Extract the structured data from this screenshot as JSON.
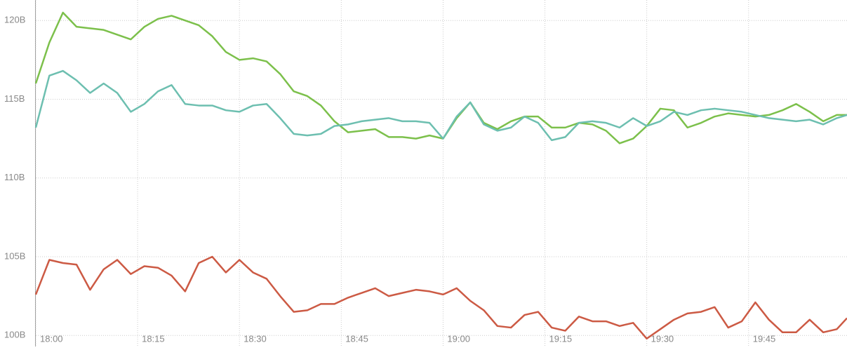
{
  "chart_data": {
    "type": "line",
    "x": [
      0,
      2,
      4,
      6,
      8,
      10,
      12,
      14,
      16,
      18,
      20,
      22,
      24,
      26,
      28,
      30,
      32,
      34,
      36,
      38,
      40,
      42,
      44,
      46,
      48,
      50,
      52,
      54,
      56,
      58,
      60,
      62,
      64,
      66,
      68,
      70,
      72,
      74,
      76,
      78,
      80,
      82,
      84,
      86,
      88,
      90,
      92,
      94,
      96,
      98,
      100,
      102,
      104,
      106,
      108,
      110,
      112,
      114,
      116,
      118,
      119.5
    ],
    "series": [
      {
        "color": "#7cc04b",
        "values": [
          116.0,
          118.6,
          120.5,
          119.6,
          119.5,
          119.4,
          119.1,
          118.8,
          119.6,
          120.1,
          120.3,
          120.0,
          119.7,
          119.0,
          118.0,
          117.5,
          117.6,
          117.4,
          116.6,
          115.5,
          115.2,
          114.6,
          113.6,
          112.9,
          113.0,
          113.1,
          112.6,
          112.6,
          112.5,
          112.7,
          112.5,
          113.8,
          114.8,
          113.5,
          113.1,
          113.6,
          113.9,
          113.9,
          113.2,
          113.2,
          113.5,
          113.4,
          113.0,
          112.2,
          112.5,
          113.3,
          114.4,
          114.3,
          113.2,
          113.5,
          113.9,
          114.1,
          114.0,
          113.9,
          114.0,
          114.3,
          114.7,
          114.2,
          113.6,
          114.0,
          114.0
        ]
      },
      {
        "color": "#6dbfb0",
        "values": [
          113.2,
          116.5,
          116.8,
          116.2,
          115.4,
          116.0,
          115.4,
          114.2,
          114.7,
          115.5,
          115.9,
          114.7,
          114.6,
          114.6,
          114.3,
          114.2,
          114.6,
          114.7,
          113.8,
          112.8,
          112.7,
          112.8,
          113.3,
          113.4,
          113.6,
          113.7,
          113.8,
          113.6,
          113.6,
          113.5,
          112.5,
          113.9,
          114.8,
          113.4,
          113.0,
          113.2,
          113.9,
          113.5,
          112.4,
          112.6,
          113.5,
          113.6,
          113.5,
          113.2,
          113.8,
          113.3,
          113.6,
          114.2,
          114.0,
          114.3,
          114.4,
          114.3,
          114.2,
          114.0,
          113.8,
          113.7,
          113.6,
          113.7,
          113.4,
          113.8,
          114.0
        ]
      },
      {
        "color": "#cc5a44",
        "values": [
          102.6,
          104.8,
          104.6,
          104.5,
          102.9,
          104.2,
          104.8,
          103.9,
          104.4,
          104.3,
          103.8,
          102.8,
          104.6,
          105.0,
          104.0,
          104.8,
          104.0,
          103.6,
          102.5,
          101.5,
          101.6,
          102.0,
          102.0,
          102.4,
          102.7,
          103.0,
          102.5,
          102.7,
          102.9,
          102.8,
          102.6,
          103.0,
          102.2,
          101.6,
          100.6,
          100.5,
          101.3,
          101.5,
          100.5,
          100.3,
          101.2,
          100.9,
          100.9,
          100.6,
          100.8,
          99.8,
          100.4,
          101.0,
          101.4,
          101.5,
          101.8,
          100.5,
          100.9,
          102.1,
          101.0,
          100.2,
          100.2,
          101.0,
          100.2,
          100.4,
          101.1
        ]
      }
    ],
    "xlim": [
      0,
      119.5
    ],
    "xticks": [
      {
        "value": 0,
        "label": "18:00"
      },
      {
        "value": 15,
        "label": "18:15"
      },
      {
        "value": 30,
        "label": "18:30"
      },
      {
        "value": 45,
        "label": "18:45"
      },
      {
        "value": 60,
        "label": "19:00"
      },
      {
        "value": 75,
        "label": "19:15"
      },
      {
        "value": 90,
        "label": "19:30"
      },
      {
        "value": 105,
        "label": "19:45"
      }
    ],
    "ylim": [
      99.3,
      121.3
    ],
    "yticks": [
      {
        "value": 100,
        "label": "100B"
      },
      {
        "value": 105,
        "label": "105B"
      },
      {
        "value": 110,
        "label": "110B"
      },
      {
        "value": 115,
        "label": "115B"
      },
      {
        "value": 120,
        "label": "120B"
      }
    ],
    "grid": true
  }
}
